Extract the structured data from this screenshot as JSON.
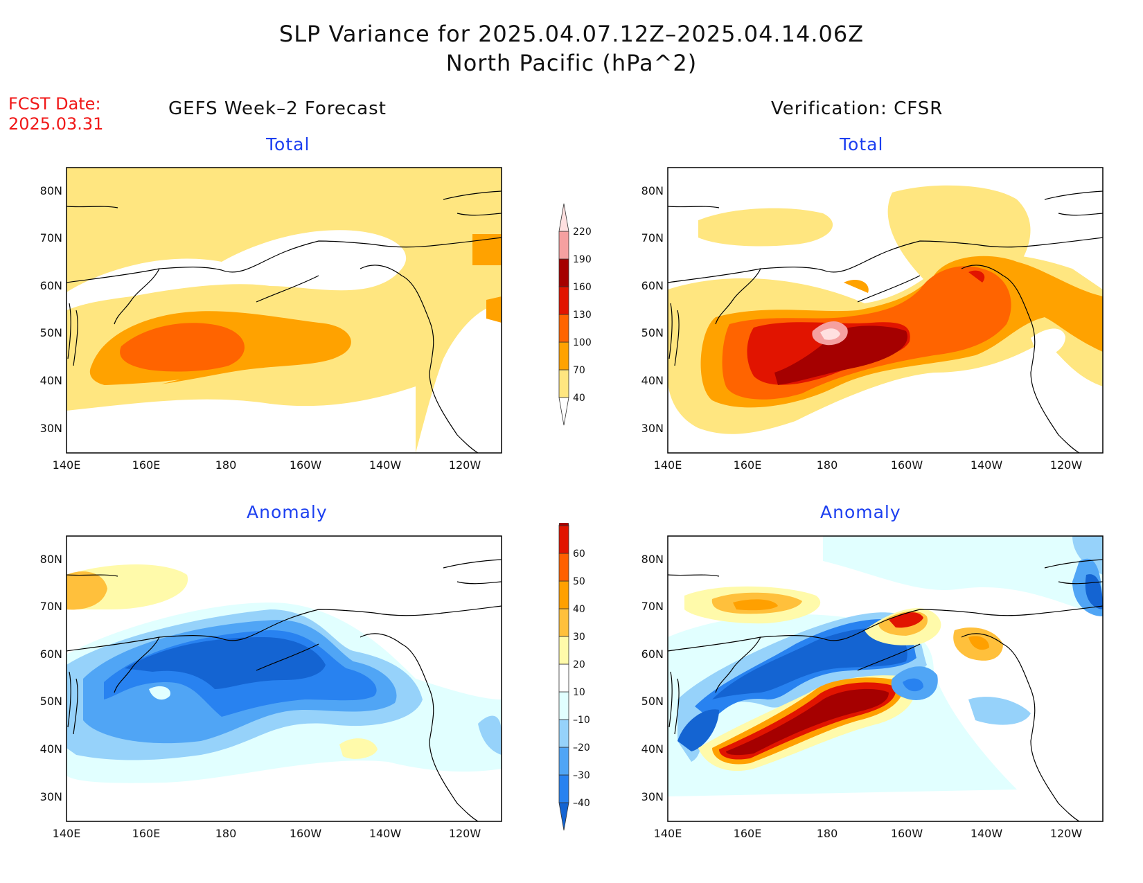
{
  "title_line1": "SLP Variance for 2025.04.07.12Z–2025.04.14.06Z",
  "title_line2": "North Pacific (hPa^2)",
  "fcst_label": "FCST Date:",
  "fcst_date": "2025.03.31",
  "left_header": "GEFS Week–2 Forecast",
  "right_header": "Verification: CFSR",
  "panel_titles": {
    "top_left": "Total",
    "top_right": "Total",
    "bottom_left": "Anomaly",
    "bottom_right": "Anomaly"
  },
  "lat_labels": [
    "80N",
    "70N",
    "60N",
    "50N",
    "40N",
    "30N"
  ],
  "lon_labels": [
    "140E",
    "160E",
    "180",
    "160W",
    "140W",
    "120W"
  ],
  "colors": {
    "title_red": "#f01818",
    "subtitle_blue": "#1c3ff0"
  },
  "total_colorbar": {
    "levels": [
      "40",
      "70",
      "100",
      "130",
      "160",
      "190",
      "220"
    ],
    "colors": [
      "#ffe680",
      "#ffa200",
      "#ff6400",
      "#e11400",
      "#a50000",
      "#f5a0a0",
      "#ffe0e0"
    ]
  },
  "anomaly_colorbar": {
    "levels": [
      "–40",
      "–30",
      "–20",
      "–10",
      "10",
      "20",
      "30",
      "40",
      "50",
      "60"
    ],
    "colors": [
      "#1464d2",
      "#2882f0",
      "#50a5f5",
      "#96d2fa",
      "#e1ffff",
      "#ffffff",
      "#fffaaa",
      "#ffc03c",
      "#ffa000",
      "#ff6000",
      "#e11400",
      "#a50000"
    ]
  }
}
